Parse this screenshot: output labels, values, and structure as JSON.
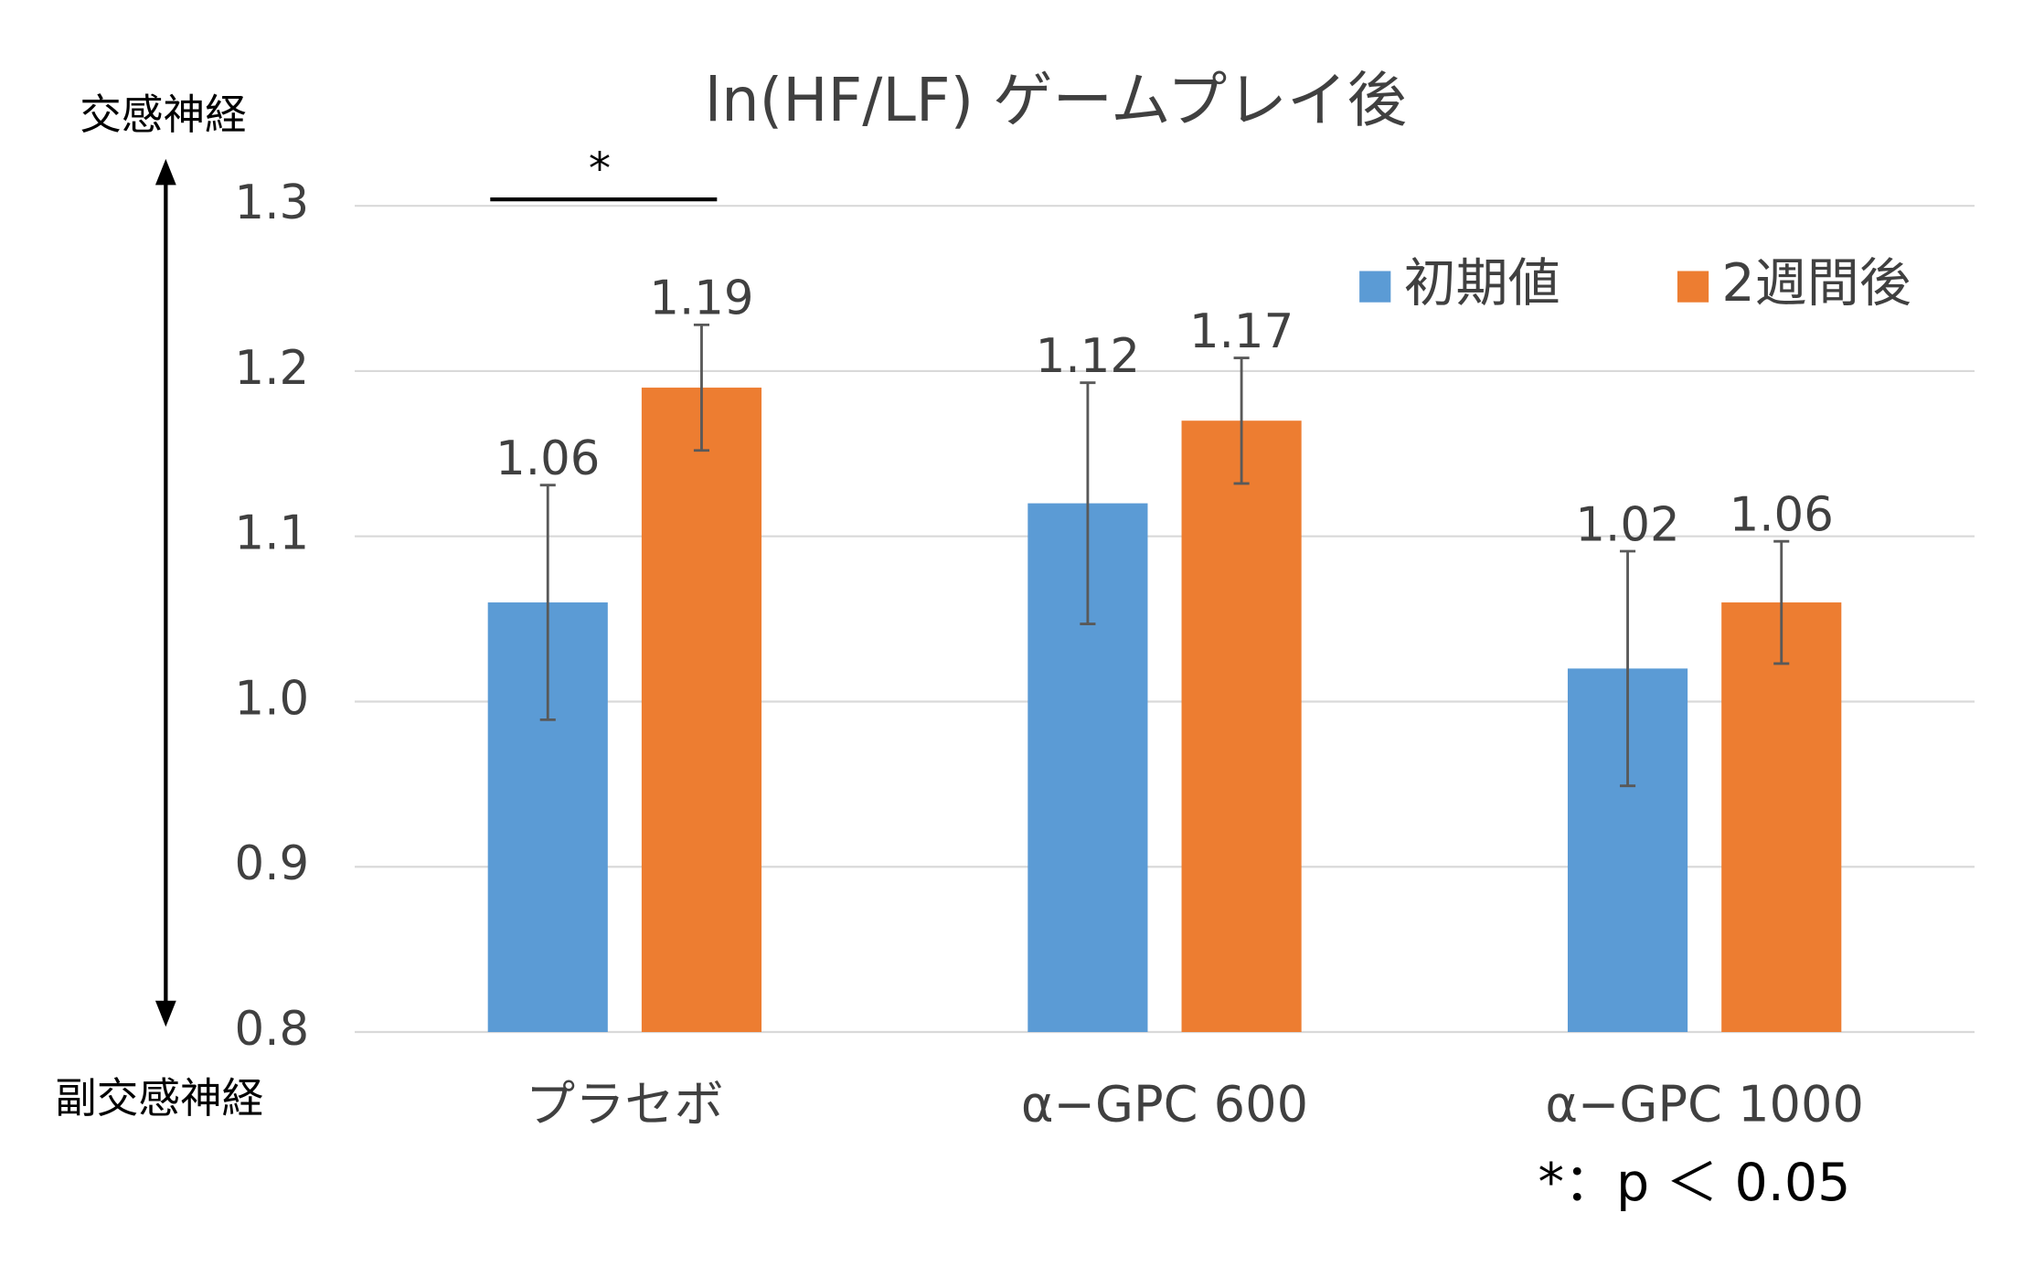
{
  "chart_data": {
    "type": "bar",
    "title": "ln(HF/LF)  ゲームプレイ後",
    "categories": [
      "プラセボ",
      "α−GPC 600",
      "α−GPC 1000"
    ],
    "series": [
      {
        "name": "初期値",
        "color": "#5b9bd5",
        "values": [
          1.06,
          1.12,
          1.02
        ],
        "errors": [
          0.071,
          0.073,
          0.071
        ]
      },
      {
        "name": "2週間後",
        "color": "#ed7d31",
        "values": [
          1.19,
          1.17,
          1.06
        ],
        "errors": [
          0.038,
          0.038,
          0.037
        ]
      }
    ],
    "ylim": [
      0.8,
      1.3
    ],
    "yticks": [
      0.8,
      0.9,
      {
        "value": 1,
        "label": "1.0"
      },
      1.1,
      1.2,
      1.3
    ],
    "grid": true,
    "legend": "top-right",
    "y_top_label": "交感神経",
    "y_bottom_label": "副交感神経",
    "significance": "*",
    "note": "*：p ＜ 0.05"
  }
}
